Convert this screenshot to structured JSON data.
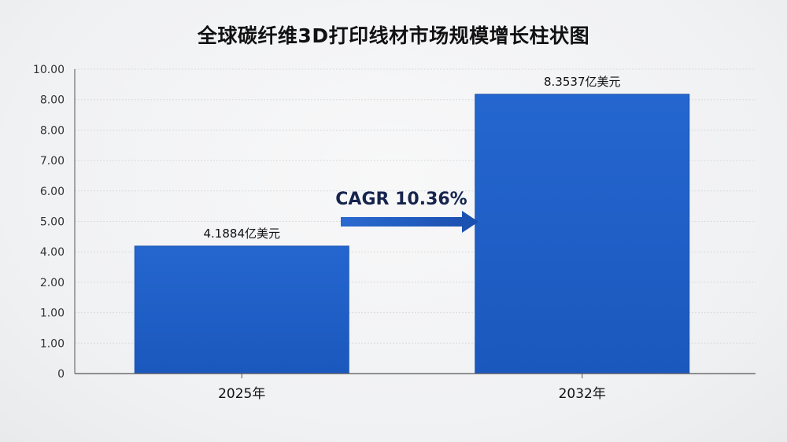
{
  "chart_data": {
    "type": "bar",
    "title": "全球碳纤维3D打印线材市场规模增长柱状图",
    "categories": [
      "2025年",
      "2032年"
    ],
    "values": [
      4.1884,
      8.3537
    ],
    "data_labels": [
      "4.1884亿美元",
      "8.3537亿美元"
    ],
    "y_tick_labels": [
      "0",
      "1.00",
      "1.00",
      "2.00",
      "4.00",
      "5.00",
      "6.00",
      "7.00",
      "8.00",
      "8.00",
      "10.00"
    ],
    "annotation": "CAGR 10.36%",
    "xlabel": "",
    "ylabel": "",
    "grid": true,
    "legend": "none",
    "colors": {
      "bar": "#1f5fc6",
      "bar_edge": "#1a52ad",
      "arrow": "#1e54b8",
      "axis": "#555555",
      "grid": "#d9dbdf"
    }
  }
}
